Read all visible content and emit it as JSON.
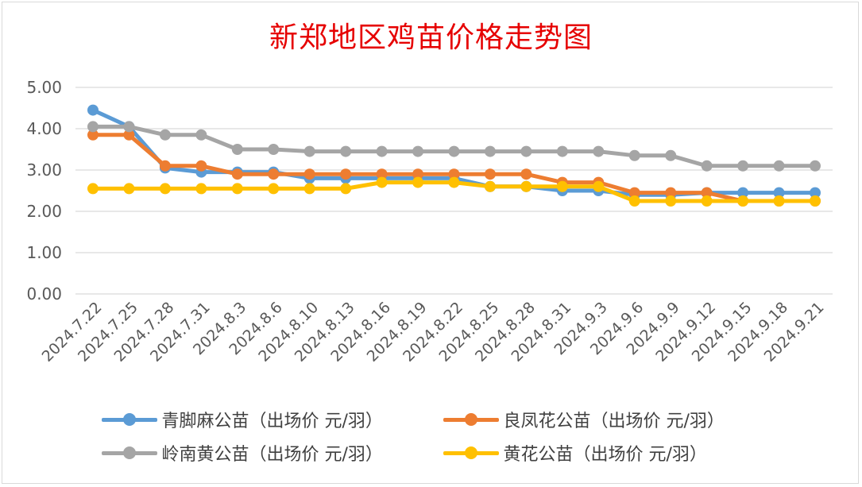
{
  "chart_data": {
    "type": "line",
    "title": "新郑地区鸡苗价格走势图",
    "xlabel": "",
    "ylabel": "",
    "ylim": [
      0,
      5
    ],
    "yticks": [
      "0.00",
      "1.00",
      "2.00",
      "3.00",
      "4.00",
      "5.00"
    ],
    "grid": true,
    "legend_position": "bottom",
    "categories": [
      "2024.7.22",
      "2024.7.25",
      "2024.7.28",
      "2024.7.31",
      "2024.8.3",
      "2024.8.6",
      "2024.8.10",
      "2024.8.13",
      "2024.8.16",
      "2024.8.19",
      "2024.8.22",
      "2024.8.25",
      "2024.8.28",
      "2024.8.31",
      "2024.9.3",
      "2024.9.6",
      "2024.9.9",
      "2024.9.12",
      "2024.9.15",
      "2024.9.18",
      "2024.9.21"
    ],
    "series": [
      {
        "name": "青脚麻公苗（出场价 元/羽）",
        "color": "#5b9bd5",
        "values": [
          4.45,
          4.05,
          3.05,
          2.95,
          2.95,
          2.95,
          2.8,
          2.8,
          2.8,
          2.8,
          2.8,
          2.6,
          2.6,
          2.5,
          2.5,
          2.4,
          2.4,
          2.45,
          2.45,
          2.45,
          2.45
        ]
      },
      {
        "name": "良凤花公苗（出场价 元/羽）",
        "color": "#ed7d31",
        "values": [
          3.85,
          3.85,
          3.1,
          3.1,
          2.9,
          2.9,
          2.9,
          2.9,
          2.9,
          2.9,
          2.9,
          2.9,
          2.9,
          2.7,
          2.7,
          2.45,
          2.45,
          2.45,
          2.25,
          2.25,
          2.25
        ]
      },
      {
        "name": "岭南黄公苗（出场价 元/羽）",
        "color": "#a5a5a5",
        "values": [
          4.05,
          4.05,
          3.85,
          3.85,
          3.5,
          3.5,
          3.45,
          3.45,
          3.45,
          3.45,
          3.45,
          3.45,
          3.45,
          3.45,
          3.45,
          3.35,
          3.35,
          3.1,
          3.1,
          3.1,
          3.1
        ]
      },
      {
        "name": "黄花公苗（出场价 元/羽）",
        "color": "#ffc000",
        "values": [
          2.55,
          2.55,
          2.55,
          2.55,
          2.55,
          2.55,
          2.55,
          2.55,
          2.7,
          2.7,
          2.7,
          2.6,
          2.6,
          2.6,
          2.6,
          2.25,
          2.25,
          2.25,
          2.25,
          2.25,
          2.25
        ]
      }
    ]
  }
}
